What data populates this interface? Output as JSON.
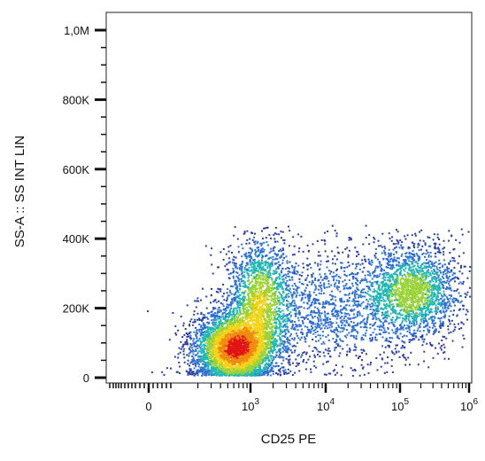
{
  "chart_data": {
    "type": "scatter",
    "subtype": "flow-cytometry-density-dot-plot",
    "xlabel": "CD25 PE",
    "ylabel": "SS-A :: SS INT LIN",
    "x_scale": "biexponential",
    "y_scale": "linear",
    "ylim": [
      0,
      1050000
    ],
    "y_ticks": [
      {
        "value": 0,
        "label": "0"
      },
      {
        "value": 200000,
        "label": "200K"
      },
      {
        "value": 400000,
        "label": "400K"
      },
      {
        "value": 600000,
        "label": "600K"
      },
      {
        "value": 800000,
        "label": "800K"
      },
      {
        "value": 1000000,
        "label": "1,0M"
      }
    ],
    "x_ticks": [
      {
        "value": 0,
        "label": "0"
      },
      {
        "value": 1000,
        "base": "10",
        "exp": "3"
      },
      {
        "value": 10000,
        "base": "10",
        "exp": "4"
      },
      {
        "value": 100000,
        "base": "10",
        "exp": "5"
      },
      {
        "value": 1000000,
        "base": "10",
        "exp": "6"
      }
    ],
    "color_scale": [
      "#2b3f9e",
      "#2f6fd1",
      "#23b6b3",
      "#9bd23a",
      "#f2d316",
      "#f08a10",
      "#e01515"
    ],
    "populations": [
      {
        "label": "",
        "x_center": 600,
        "y_center": 85000,
        "x_spread_decades": 0.28,
        "y_spread": 55000,
        "weight": 0.45,
        "peak_density": 1.0
      },
      {
        "label": "",
        "x_center": 1300,
        "y_center": 230000,
        "x_spread_decades": 0.22,
        "y_spread": 90000,
        "weight": 0.18,
        "peak_density": 0.55
      },
      {
        "label": "",
        "x_center": 150000,
        "y_center": 250000,
        "x_spread_decades": 0.35,
        "y_spread": 70000,
        "weight": 0.22,
        "peak_density": 0.5
      },
      {
        "label": "",
        "x_center": 12000,
        "y_center": 200000,
        "x_spread_decades": 0.6,
        "y_spread": 90000,
        "weight": 0.15,
        "peak_density": 0.2
      }
    ],
    "event_y_max": 440000,
    "grid": false,
    "legend": "none"
  }
}
